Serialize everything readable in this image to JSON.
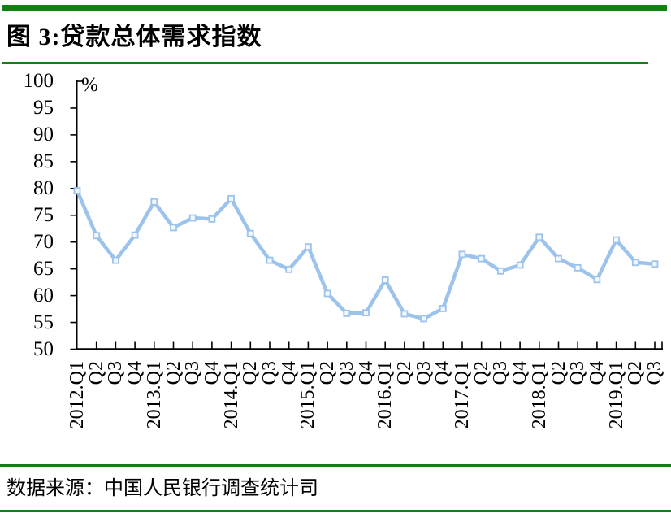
{
  "page": {
    "title": "图 3:贷款总体需求指数",
    "source": "数据来源：中国人民银行调查统计司"
  },
  "colors": {
    "accent_green": "#128112",
    "line_blue": "#9cc3ec",
    "marker_fill": "#f2f8ff",
    "axis_black": "#000000"
  },
  "chart_data": {
    "type": "line",
    "title": "贷款总体需求指数",
    "unit_label": "%",
    "categories": [
      "2012.Q1",
      "Q2",
      "Q3",
      "Q4",
      "2013.Q1",
      "Q2",
      "Q3",
      "Q4",
      "2014.Q1",
      "Q2",
      "Q3",
      "Q4",
      "2015.Q1",
      "Q2",
      "Q3",
      "Q4",
      "2016.Q1",
      "Q2",
      "Q3",
      "Q4",
      "2017.Q1",
      "Q2",
      "Q3",
      "Q4",
      "2018.Q1",
      "Q2",
      "Q3",
      "Q4",
      "2019.Q1",
      "Q2",
      "Q3"
    ],
    "series": [
      {
        "name": "贷款总体需求指数",
        "values": [
          79.6,
          71.2,
          66.6,
          71.3,
          77.5,
          72.7,
          74.5,
          74.3,
          78.1,
          71.6,
          66.6,
          64.9,
          69.1,
          60.4,
          56.7,
          56.8,
          62.9,
          56.6,
          55.7,
          57.6,
          67.7,
          66.9,
          64.6,
          65.7,
          70.9,
          66.9,
          65.2,
          63.0,
          70.4,
          66.2,
          65.9
        ]
      }
    ],
    "ylim": [
      50,
      100
    ],
    "yticks": [
      50,
      55,
      60,
      65,
      70,
      75,
      80,
      85,
      90,
      95,
      100
    ],
    "xlabel": "",
    "ylabel": "%",
    "grid": false,
    "legend": "none",
    "marker": "square-hollow"
  }
}
